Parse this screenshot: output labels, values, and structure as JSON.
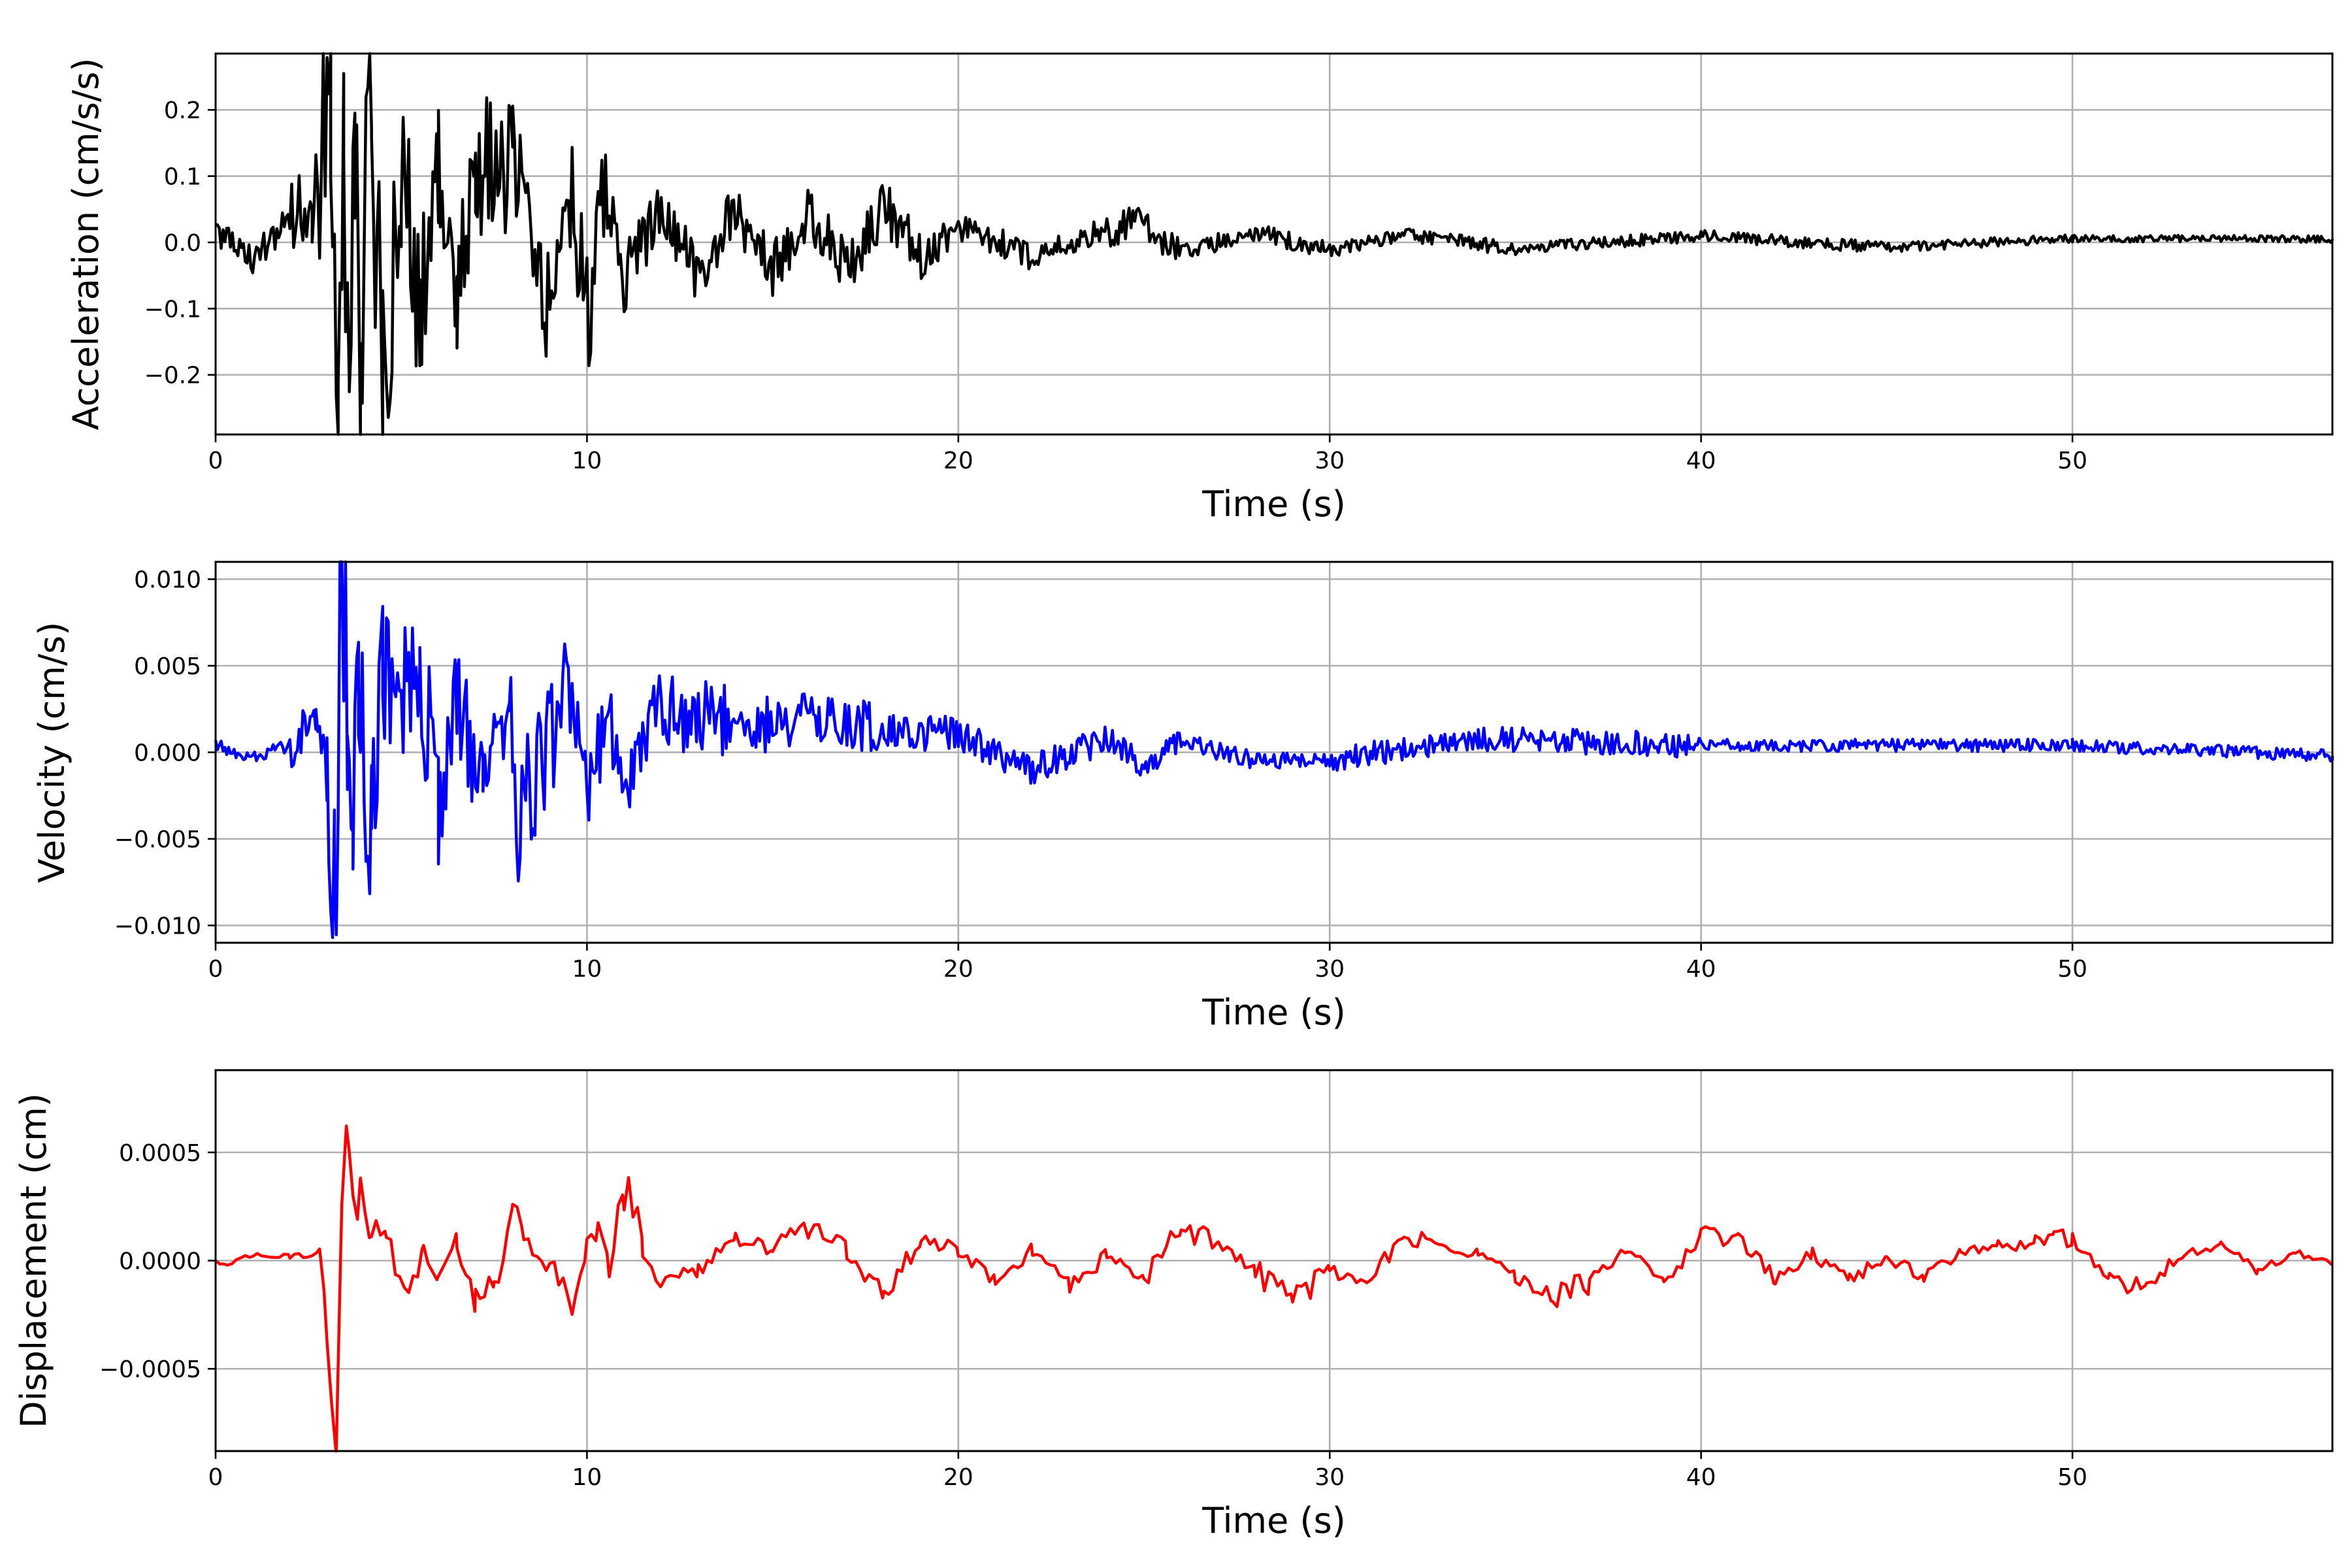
{
  "chart_data": [
    {
      "type": "line",
      "xlabel": "Time (s)",
      "ylabel": "Acceleration (cm/s/s)",
      "xlim": [
        0,
        57
      ],
      "ylim": [
        -0.29,
        0.285
      ],
      "xticks": [
        0,
        10,
        20,
        30,
        40,
        50
      ],
      "xtick_labels": [
        "0",
        "10",
        "20",
        "30",
        "40",
        "50"
      ],
      "yticks": [
        -0.2,
        -0.1,
        0.0,
        0.1,
        0.2
      ],
      "ytick_labels": [
        "−0.2",
        "−0.1",
        "0.0",
        "0.1",
        "0.2"
      ],
      "grid": true,
      "color": "#000000",
      "series": [
        {
          "x": [
            0,
            1,
            2,
            2.6,
            3.1,
            3.3,
            3.45,
            3.6,
            3.75,
            3.9,
            4.05,
            4.2,
            4.5,
            5,
            5.5,
            6,
            6.5,
            7,
            8,
            9,
            9.5,
            10,
            10.5,
            11,
            12,
            13,
            14,
            15,
            16,
            17,
            18,
            19,
            20,
            22,
            24,
            25,
            26,
            28,
            30,
            32,
            35,
            40,
            45,
            50,
            57
          ],
          "y": [
            0.02,
            -0.025,
            0.03,
            0.08,
            0.18,
            -0.22,
            0.21,
            -0.23,
            0.2,
            -0.19,
            0.15,
            0.26,
            -0.21,
            0.13,
            -0.16,
            0.15,
            -0.12,
            0.13,
            0.11,
            -0.1,
            0.1,
            -0.11,
            0.07,
            -0.06,
            0.05,
            -0.05,
            0.045,
            -0.04,
            0.045,
            -0.04,
            0.05,
            -0.03,
            0.025,
            -0.02,
            0.02,
            0.03,
            -0.015,
            0.015,
            -0.012,
            0.012,
            -0.01,
            0.01,
            -0.008,
            0.006,
            0.005
          ]
        }
      ]
    },
    {
      "type": "line",
      "xlabel": "Time (s)",
      "ylabel": "Velocity (cm/s)",
      "xlim": [
        0,
        57
      ],
      "ylim": [
        -0.011,
        0.011
      ],
      "xticks": [
        0,
        10,
        20,
        30,
        40,
        50
      ],
      "xtick_labels": [
        "0",
        "10",
        "20",
        "30",
        "40",
        "50"
      ],
      "yticks": [
        -0.01,
        -0.005,
        0.0,
        0.005,
        0.01
      ],
      "ytick_labels": [
        "−0.010",
        "−0.005",
        "0.000",
        "0.005",
        "0.010"
      ],
      "grid": true,
      "color": "#0000ff",
      "series": [
        {
          "x": [
            0,
            1,
            2,
            2.7,
            3.0,
            3.2,
            3.4,
            3.55,
            3.7,
            3.85,
            4.2,
            4.5,
            5.5,
            6,
            6.5,
            7.2,
            7.9,
            8.1,
            9.5,
            10,
            10.5,
            11,
            12,
            14,
            16,
            18,
            20,
            22,
            24,
            25,
            26,
            28,
            30,
            34,
            40,
            50,
            57
          ],
          "y": [
            0.0004,
            -0.0003,
            0.0004,
            0.0017,
            -0.0015,
            -0.0076,
            0.01,
            0.0058,
            -0.0041,
            0.0045,
            -0.0059,
            0.0035,
            0.0049,
            -0.0035,
            0.0033,
            -0.0025,
            0.0032,
            -0.0042,
            0.003,
            -0.0035,
            0.0025,
            -0.002,
            0.0025,
            0.0015,
            0.0018,
            0.0012,
            0.001,
            -0.001,
            0.0008,
            -0.0008,
            0.0006,
            -0.0005,
            -0.0004,
            0.0008,
            0.0004,
            0.0004,
            -0.0002
          ]
        }
      ]
    },
    {
      "type": "line",
      "xlabel": "Time (s)",
      "ylabel": "Displacement (cm)",
      "xlim": [
        0,
        57
      ],
      "ylim": [
        -0.00088,
        0.00088
      ],
      "xticks": [
        0,
        10,
        20,
        30,
        40,
        50
      ],
      "xtick_labels": [
        "0",
        "10",
        "20",
        "30",
        "40",
        "50"
      ],
      "yticks": [
        -0.0005,
        0.0,
        0.0005
      ],
      "ytick_labels": [
        "−0.0005",
        "0.0000",
        "0.0005"
      ],
      "grid": true,
      "color": "#ff0000",
      "series": [
        {
          "x": [
            0,
            0.2,
            1,
            2,
            2.8,
            3.0,
            3.25,
            3.4,
            3.6,
            3.7,
            3.9,
            4.2,
            4.6,
            5.2,
            5.6,
            6,
            6.5,
            7,
            7.5,
            8,
            8.3,
            9,
            9.7,
            10,
            10.3,
            10.6,
            11,
            11.5,
            12,
            13,
            14,
            15,
            16,
            17,
            18,
            19,
            20,
            21,
            22,
            23,
            24,
            25,
            26,
            27,
            28,
            29,
            30,
            31,
            32,
            33,
            34,
            35,
            36,
            37,
            38,
            39,
            40,
            41,
            42,
            43,
            44,
            45,
            46,
            47,
            48,
            49,
            49.5,
            50,
            51,
            52,
            53,
            54,
            55,
            56,
            57
          ],
          "y": [
            0,
            -2e-05,
            3e-05,
            2e-05,
            3e-05,
            -0.0002,
            -0.00082,
            0.0004,
            0.00053,
            0.0002,
            0.00038,
            0.00015,
            0.0001,
            -0.00018,
            5e-05,
            -0.0001,
            0.0001,
            -0.0002,
            -0.0001,
            0.00023,
            0.0001,
            -5e-05,
            -0.00022,
            0.0001,
            0.00015,
            -5e-05,
            0.00034,
            5e-05,
            -0.0001,
            -5e-05,
            0.0001,
            5e-05,
            0.00015,
            5e-05,
            -0.00015,
            0.0001,
            5e-05,
            -0.0001,
            5e-05,
            -0.00012,
            2e-05,
            -8e-05,
            0.00015,
            8e-05,
            -5e-05,
            -0.00018,
            -5e-05,
            -0.0001,
            0.00012,
            7e-05,
            3e-05,
            -5e-05,
            -0.00017,
            -0.0001,
            5e-05,
            -0.0001,
            0.00012,
            0.0001,
            -8e-05,
            3e-05,
            -9e-05,
            2e-05,
            -8e-05,
            4e-05,
            6e-05,
            0.0001,
            0.00012,
            0.0001,
            -0.0001,
            -0.00013,
            3e-05,
            8e-05,
            -5e-05,
            4e-05,
            -2e-05
          ]
        }
      ]
    }
  ]
}
